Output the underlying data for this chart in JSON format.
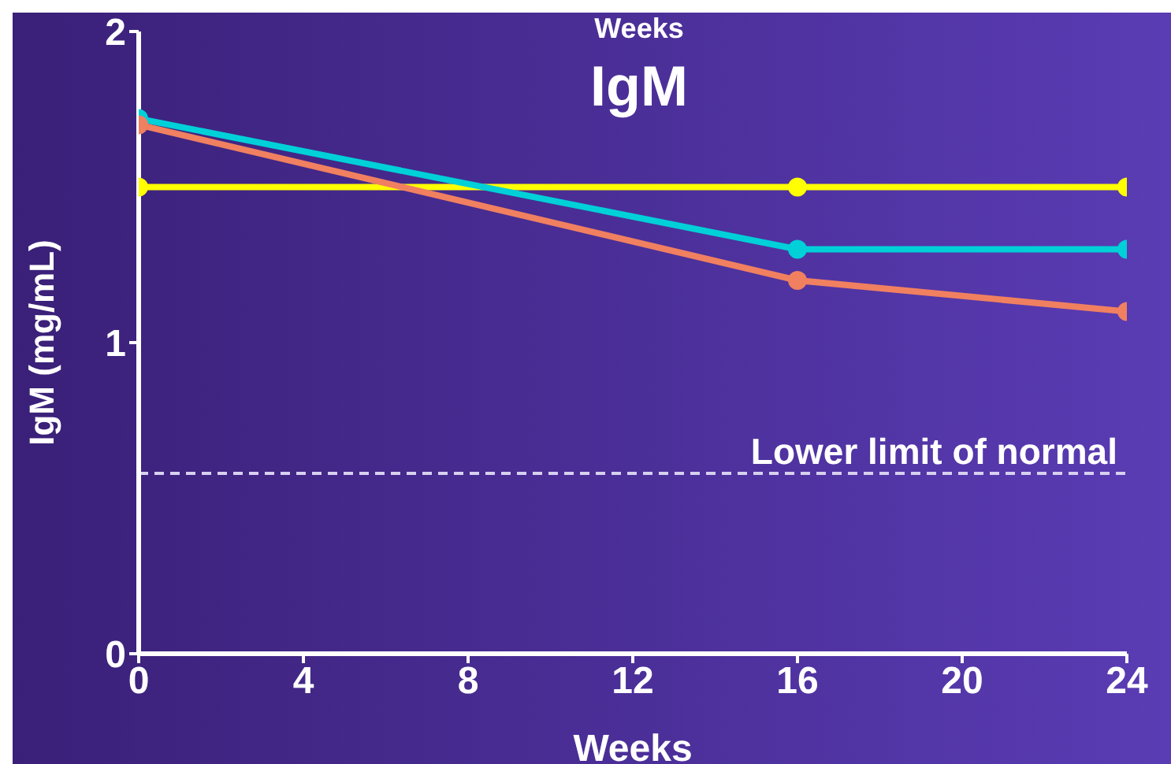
{
  "chart_data": {
    "type": "line",
    "title": "IgM",
    "xlabel": "Weeks",
    "ylabel": "IgM (mg/mL)",
    "annotations": [
      "Weeks"
    ],
    "x": [
      0,
      16,
      24
    ],
    "series": [
      {
        "color": "#ffff00",
        "values": [
          1.5,
          1.5,
          1.5
        ]
      },
      {
        "color": "#00d0d8",
        "values": [
          1.72,
          1.3,
          1.3
        ]
      },
      {
        "color": "#f08060",
        "values": [
          1.7,
          1.2,
          1.1
        ]
      }
    ],
    "xlim": [
      0,
      24
    ],
    "xticks": [
      0,
      4,
      8,
      12,
      16,
      20,
      24
    ],
    "ylim": [
      0,
      2
    ],
    "yticks": [
      0,
      1,
      2
    ],
    "ref_lines": [
      {
        "axis": "y",
        "value": 0.58,
        "label": "Lower limit of normal",
        "color": "#d8d0f0",
        "line_style": "dashed"
      }
    ],
    "marker": "circle",
    "grid": false,
    "legend": false
  }
}
